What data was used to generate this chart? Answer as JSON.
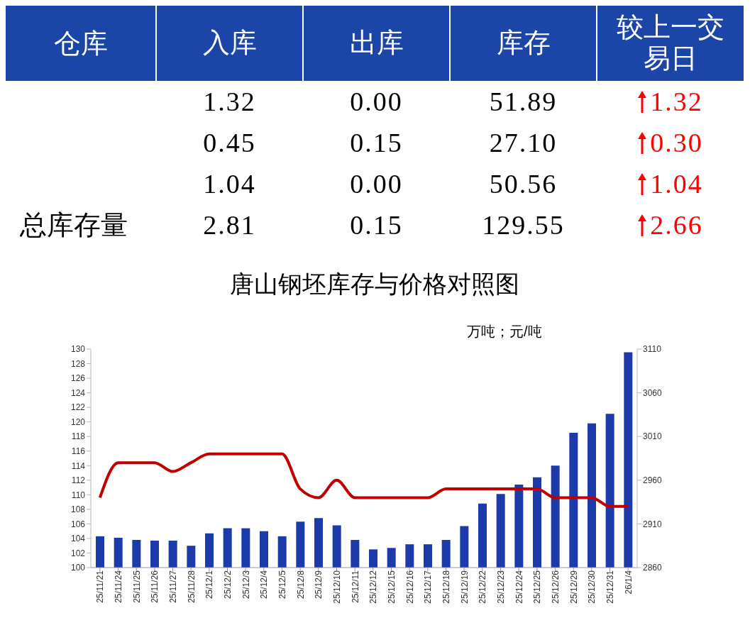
{
  "chart_data": [
    {
      "type": "other",
      "ylabel": "仓库",
      "categories": [
        "入库",
        "出库",
        "库存",
        "较上一交易日"
      ],
      "series": [
        {
          "values": [
            1.32,
            0,
            51.89,
            1.32
          ],
          "value_labels": [
            "1.32",
            "0.00",
            "51.89",
            "1.32"
          ]
        },
        {
          "values": [
            0.45,
            0.15,
            27.1,
            0.3
          ],
          "value_labels": [
            "0.45",
            "0.15",
            "27.10",
            "0.30"
          ]
        },
        {
          "values": [
            1.04,
            0,
            50.56,
            1.04
          ],
          "value_labels": [
            "1.04",
            "0.00",
            "50.56",
            "1.04"
          ]
        },
        {
          "name": "总库存量",
          "values": [
            2.81,
            0.15,
            129.55,
            2.66
          ],
          "value_labels": [
            "2.81",
            "0.15",
            "129.55",
            "2.66"
          ]
        }
      ]
    },
    {
      "type": "bar",
      "title": "唐山钢坯库存与价格对照图",
      "annotations": [
        "万吨；元/吨"
      ],
      "categories": [
        "25/11/21",
        "25/11/24",
        "25/11/25",
        "25/11/26",
        "25/11/27",
        "25/11/28",
        "25/12/1",
        "25/12/2",
        "25/12/3",
        "25/12/4",
        "25/12/5",
        "25/12/8",
        "25/12/9",
        "25/12/10",
        "25/12/11",
        "25/12/12",
        "25/12/15",
        "25/12/16",
        "25/12/17",
        "25/12/18",
        "25/12/19",
        "25/12/22",
        "25/12/23",
        "25/12/24",
        "25/12/25",
        "25/12/26",
        "25/12/29",
        "25/12/30",
        "25/12/31",
        "26/1/4"
      ],
      "series": [
        {
          "type": "bar",
          "color": "#1c3aa9",
          "values": [
            104.3,
            104.1,
            103.8,
            103.7,
            103.7,
            103.0,
            104.7,
            105.4,
            105.4,
            105.0,
            104.3,
            106.3,
            106.8,
            105.8,
            103.8,
            102.5,
            102.7,
            103.2,
            103.2,
            103.8,
            105.7,
            108.8,
            110.1,
            111.4,
            112.4,
            114.0,
            118.5,
            119.8,
            121.1,
            129.55
          ]
        },
        {
          "type": "line",
          "axis": "y2",
          "color": "#c00000",
          "values": [
            2940,
            2980,
            2980,
            2980,
            2970,
            2980,
            2990,
            2990,
            2990,
            2990,
            2990,
            2950,
            2940,
            2960,
            2940,
            2940,
            2940,
            2940,
            2940,
            2950,
            2950,
            2950,
            2950,
            2950,
            2950,
            2940,
            2940,
            2940,
            2930,
            2930
          ]
        }
      ],
      "ylim": [
        100,
        130
      ],
      "yticks": [
        100,
        102,
        104,
        106,
        108,
        110,
        112,
        114,
        116,
        118,
        120,
        122,
        124,
        126,
        128,
        130
      ],
      "y2lim": [
        2860,
        3110
      ],
      "y2ticks": [
        2860,
        2910,
        2960,
        3010,
        3060,
        3110
      ],
      "grid": false,
      "legend": false,
      "marker": "none"
    }
  ]
}
